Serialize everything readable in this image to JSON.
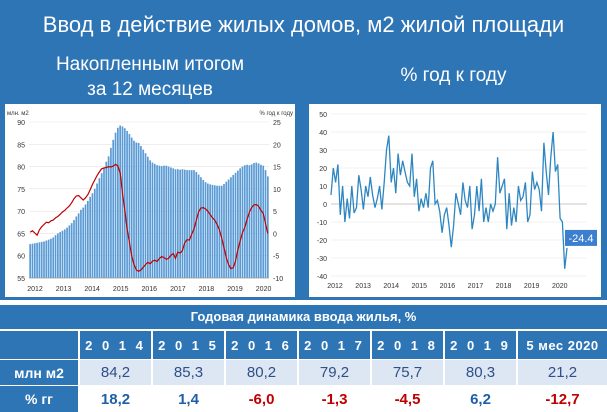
{
  "header": {
    "title": "Ввод в действие жилых домов, м2 жилой площади"
  },
  "left_panel": {
    "title_line1": "Накопленным итогом",
    "title_line2": "за 12 месяцев"
  },
  "right_panel": {
    "title": "% год к году"
  },
  "colors": {
    "brand_blue": "#2e75b6",
    "bar_blue": "#5b9bd5",
    "line_red": "#c00000",
    "yoy_line": "#2e86c1",
    "positive": "#1f5fa8",
    "negative": "#c00000"
  },
  "chart_data": [
    {
      "type": "bar",
      "left_unit": "млн. м2",
      "right_unit": "% год к году",
      "x_ticks": [
        "2012",
        "2013",
        "2014",
        "2015",
        "2016",
        "2017",
        "2018",
        "2019",
        "2020"
      ],
      "left_ticks": [
        "55",
        "60",
        "65",
        "70",
        "75",
        "80",
        "85",
        "90"
      ],
      "right_ticks": [
        "-10",
        "-5",
        "0",
        "5",
        "10",
        "15",
        "20",
        "25"
      ],
      "ylim_left": [
        55,
        90
      ],
      "ylim_right": [
        -10,
        25
      ],
      "series": [
        {
          "kind": "bar",
          "values": [
            62.6,
            62.7,
            62.8,
            62.9,
            63.0,
            63.1,
            63.2,
            63.4,
            63.6,
            63.8,
            64.1,
            64.6,
            65.0,
            65.3,
            65.6,
            65.9,
            66.3,
            66.8,
            67.3,
            68.0,
            68.8,
            69.5,
            70.3,
            70.8,
            71.5,
            72.3,
            73.2,
            74.0,
            75.0,
            76.2,
            77.4,
            78.5,
            79.8,
            81.1,
            82.3,
            84.2,
            86.0,
            87.6,
            88.7,
            89.2,
            89.0,
            88.6,
            88.0,
            87.3,
            86.5,
            85.8,
            85.4,
            85.3,
            84.6,
            83.8,
            83.0,
            82.2,
            81.4,
            80.9,
            80.6,
            80.3,
            80.2,
            80.1,
            80.2,
            80.2,
            80.0,
            79.8,
            79.6,
            79.4,
            79.4,
            79.3,
            79.4,
            79.3,
            79.2,
            79.2,
            79.2,
            79.2,
            78.8,
            78.2,
            77.6,
            77.0,
            76.5,
            76.2,
            76.0,
            75.9,
            75.8,
            75.7,
            75.7,
            75.7,
            76.1,
            76.6,
            77.1,
            77.6,
            78.1,
            78.6,
            79.1,
            79.6,
            80.0,
            80.3,
            80.4,
            80.3,
            80.5,
            80.8,
            80.9,
            80.7,
            80.4,
            80.2,
            79.2,
            77.8
          ]
        },
        {
          "kind": "line",
          "axis": "right",
          "values": [
            0.3,
            0.6,
            0.1,
            -0.4,
            0.8,
            1.5,
            2.0,
            2.5,
            2.4,
            2.8,
            3.0,
            3.5,
            3.8,
            4.3,
            4.8,
            5.2,
            5.7,
            6.2,
            6.9,
            7.8,
            8.4,
            8.5,
            8.0,
            7.5,
            8.0,
            8.7,
            9.8,
            11.0,
            12.0,
            13.0,
            13.8,
            14.5,
            14.7,
            14.8,
            15.0,
            14.9,
            15.1,
            15.5,
            15.2,
            13.5,
            9.0,
            5.3,
            1.0,
            -2.0,
            -5.0,
            -7.0,
            -8.2,
            -8.5,
            -8.2,
            -7.6,
            -7.0,
            -6.5,
            -6.8,
            -6.2,
            -6.0,
            -6.3,
            -5.6,
            -5.2,
            -5.4,
            -5.8,
            -5.6,
            -4.9,
            -4.5,
            -5.6,
            -4.2,
            -4.4,
            -3.8,
            -2.1,
            -1.4,
            -1.5,
            -0.2,
            1.0,
            3.0,
            4.8,
            5.7,
            5.8,
            5.5,
            5.0,
            4.2,
            3.5,
            3.0,
            2.0,
            0.8,
            -1.0,
            -3.2,
            -5.5,
            -7.0,
            -7.9,
            -7.7,
            -6.2,
            -3.8,
            -1.6,
            0.2,
            1.3,
            3.2,
            4.8,
            5.8,
            6.4,
            6.5,
            6.1,
            5.2,
            4.5,
            2.3,
            0.0
          ]
        }
      ]
    },
    {
      "type": "line",
      "x_ticks": [
        "2012",
        "2013",
        "2014",
        "2015",
        "2016",
        "2017",
        "2018",
        "2019",
        "2020"
      ],
      "y_ticks": [
        "-40",
        "-30",
        "-20",
        "-10",
        "0",
        "10",
        "20",
        "30",
        "40",
        "50"
      ],
      "ylim": [
        -40,
        50
      ],
      "callout": "-24.4",
      "values": [
        5,
        20,
        12,
        22,
        -6,
        10,
        -10,
        3,
        -8,
        10,
        -5,
        -2,
        16,
        8,
        -3,
        10,
        4,
        15,
        5,
        -2,
        3,
        10,
        -3,
        12,
        30,
        38,
        12,
        20,
        6,
        28,
        16,
        24,
        18,
        12,
        10,
        28,
        4,
        14,
        -4,
        3,
        -2,
        6,
        -2,
        20,
        24,
        0,
        2,
        -4,
        -16,
        -6,
        -2,
        -12,
        -24,
        -12,
        6,
        0,
        -6,
        12,
        2,
        -2,
        10,
        -14,
        -6,
        10,
        -4,
        14,
        -10,
        -2,
        -10,
        0,
        -4,
        0,
        26,
        6,
        10,
        14,
        -14,
        6,
        -12,
        -2,
        -10,
        10,
        2,
        4,
        12,
        -10,
        -6,
        18,
        8,
        12,
        8,
        -4,
        34,
        18,
        5,
        26,
        40,
        18,
        22,
        -8,
        -10,
        -36,
        -24.4
      ]
    }
  ],
  "table": {
    "title": "Годовая динамика ввода жилья, %",
    "years": [
      "2 0 1 4",
      "2 0 1 5",
      "2 0 1 6",
      "2 0 1 7",
      "2 0 1 8",
      "2 0 1 9",
      "5 мес 2020"
    ],
    "rows": [
      {
        "label": "млн м2",
        "values": [
          "84,2",
          "85,3",
          "80,2",
          "79,2",
          "75,7",
          "80,3",
          "21,2"
        ]
      },
      {
        "label": "% гг",
        "values": [
          "18,2",
          "1,4",
          "-6,0",
          "-1,3",
          "-4,5",
          "6,2",
          "-12,7"
        ]
      }
    ]
  }
}
